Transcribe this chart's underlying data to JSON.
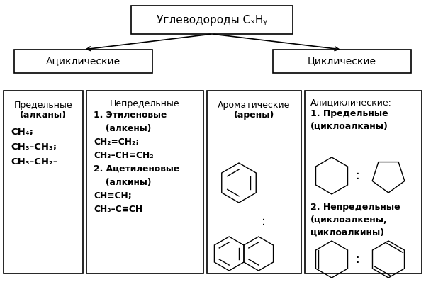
{
  "title": "Углеводороды CₓHᵧ",
  "acyclic": "Ациклические",
  "cyclic": "Циклические",
  "box1_line1": "Предельные",
  "box1_line2": "(алканы)",
  "box1_body": "CH₄;\nCH₃–CH₃;\nCH₃–CH₂–",
  "box2_line1": "Непредельные",
  "box2_body": "1. Этиленовые\n    (алкены)\nCH₂=CH₂;\nCH₃–CH=CH₂\n2. Ацетиленовые\n    (алкины)\nCH≡CH;\nCH₃–C≡CH",
  "box3_line1": "Ароматические",
  "box3_line2": "(арены)",
  "box4_line1": "Алициклические:",
  "box4_body1": "1. Предельные\n(циклоалканы)",
  "box4_body2": "2. Непредельные\n(циклоалкены,\nциклоалкины)",
  "bg_color": "#ffffff",
  "edge_color": "#000000",
  "text_color": "#000000"
}
